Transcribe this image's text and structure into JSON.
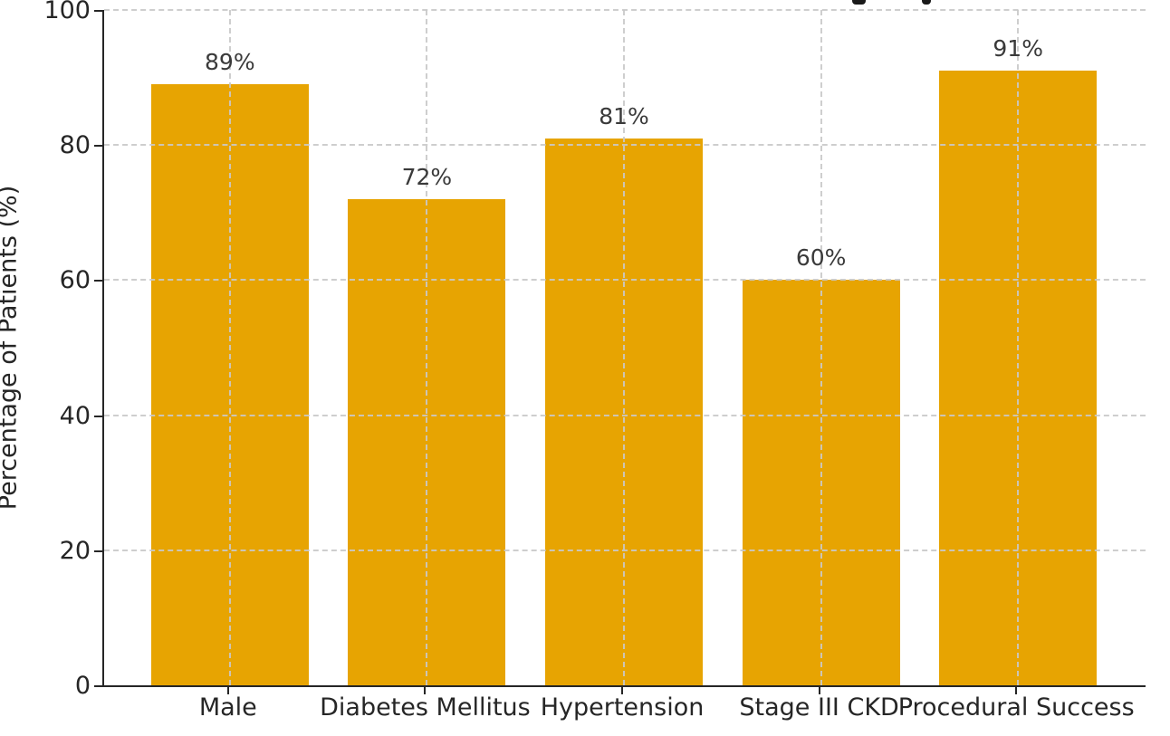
{
  "chart_data": {
    "type": "bar",
    "title": "",
    "title_cropped_at_top": true,
    "categories": [
      "Male",
      "Diabetes Mellitus",
      "Hypertension",
      "Stage III CKD",
      "Procedural Success"
    ],
    "values": [
      89,
      72,
      81,
      60,
      91
    ],
    "bar_labels": [
      "89%",
      "72%",
      "81%",
      "60%",
      "91%"
    ],
    "xlabel": "",
    "ylabel": "Percentage of Patients (%)",
    "ylim": [
      0,
      100
    ],
    "yticks": [
      0,
      20,
      40,
      60,
      80,
      100
    ],
    "ytick_labels": [
      "0",
      "20",
      "40",
      "60",
      "80",
      "100"
    ],
    "grid": true,
    "grid_style": "dashed",
    "legend": false,
    "colors": {
      "bar": "#E7A402",
      "grid": "#c9c9c9",
      "spine": "#262626",
      "tick_text": "#262626",
      "value_text": "#3a3a3a",
      "title_ink": "#1a1a1a"
    },
    "cropped_title_fragments": [
      {
        "x": 941,
        "width": 15,
        "height": 5
      },
      {
        "x": 1018,
        "width": 10,
        "height": 5
      }
    ]
  }
}
